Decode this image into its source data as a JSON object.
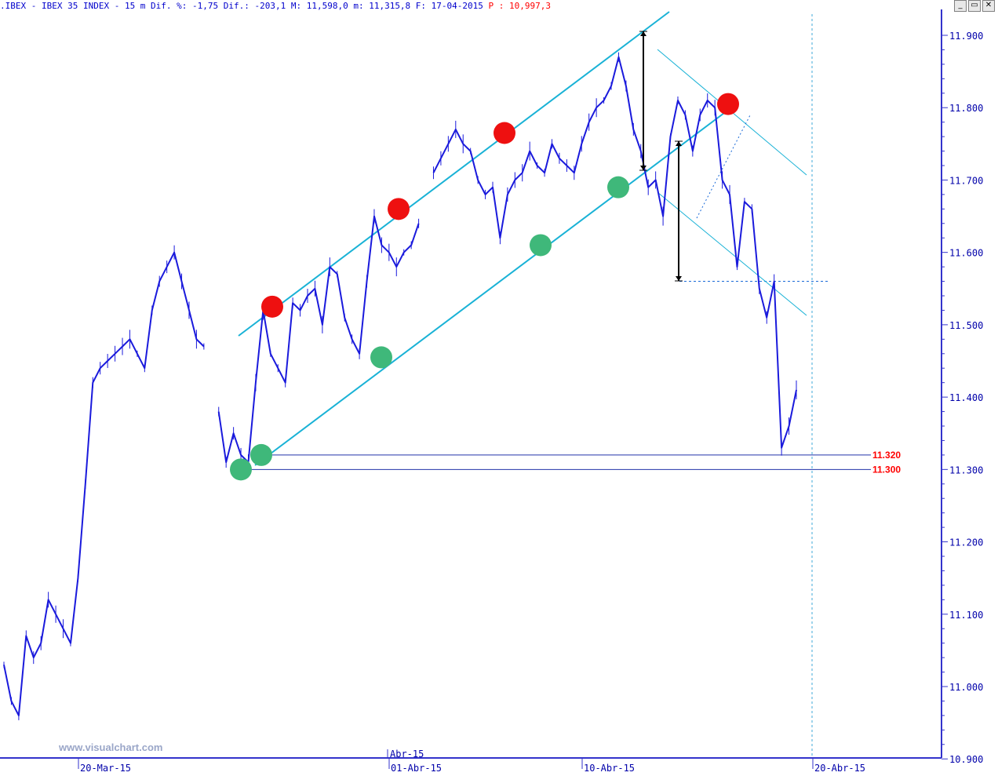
{
  "header": {
    "text": ".IBEX - IBEX 35 INDEX -  15 m Dif. %: -1,75 Dif.: -203,1 M: 11,598,0 m: 11,315,8 F: 17-04-2015",
    "last_label": "P : 10,997,3"
  },
  "window_buttons": [
    "_",
    "▭",
    "✕"
  ],
  "watermark": "www.visualchart.com",
  "colors": {
    "price": "#1a1adc",
    "channel": "#19b2d6",
    "axis": "#3333cc",
    "support_label": "#ff0000",
    "resistance_marker": "#ee1010",
    "support_marker": "#3fb87a"
  },
  "chart_data": {
    "type": "line",
    "title": "IBEX 35 INDEX",
    "interval": "15 m",
    "ylim": [
      10900,
      11965
    ],
    "y_ticks": [
      "11.900",
      "11.800",
      "11.700",
      "11.600",
      "11.500",
      "11.400",
      "11.300",
      "11.200",
      "11.100",
      "11.000",
      "10.900"
    ],
    "x_ticks": [
      "20-Mar-15",
      "01-Abr-15",
      "10-Abr-15",
      "20-Abr-15"
    ],
    "x_month_label": "Abr-15",
    "series": [
      {
        "values": [
          11030,
          10980,
          10960,
          11070,
          11040,
          11060,
          11120,
          11100,
          11080,
          11060,
          11150,
          11280,
          11420,
          11440,
          11450,
          11460,
          11470,
          11480,
          11460,
          11440,
          11520,
          11560,
          11580,
          11600,
          11560,
          11520,
          11480,
          11470,
          null,
          11380,
          11310,
          11350,
          11320,
          11310,
          11420,
          11520,
          11460,
          11440,
          11420,
          11530,
          11520,
          11540,
          11550,
          11500,
          11580,
          11570,
          11510,
          11480,
          11460,
          11560,
          11650,
          11610,
          11600,
          11580,
          11600,
          11610,
          11640,
          null,
          11710,
          11730,
          11750,
          11770,
          11750,
          11740,
          11700,
          11680,
          11690,
          11620,
          11680,
          11700,
          11710,
          11740,
          11720,
          11710,
          11750,
          11730,
          11720,
          11710,
          11750,
          11780,
          11800,
          11810,
          11830,
          11870,
          11830,
          11770,
          11740,
          11690,
          11700,
          11650,
          11760,
          11810,
          11790,
          11740,
          11790,
          11810,
          11800,
          11700,
          11680,
          11580,
          11670,
          11660,
          11550,
          11510,
          11560,
          11330,
          11360,
          11410
        ]
      }
    ],
    "horizontal_levels": [
      {
        "value": 11320,
        "label": "11.320"
      },
      {
        "value": 11300,
        "label": "11.300"
      }
    ],
    "projection_level": 11560,
    "resistance_markers": [
      11525,
      11660,
      11765,
      11805
    ],
    "support_markers": [
      11300,
      11320,
      11455,
      11610,
      11690
    ]
  }
}
